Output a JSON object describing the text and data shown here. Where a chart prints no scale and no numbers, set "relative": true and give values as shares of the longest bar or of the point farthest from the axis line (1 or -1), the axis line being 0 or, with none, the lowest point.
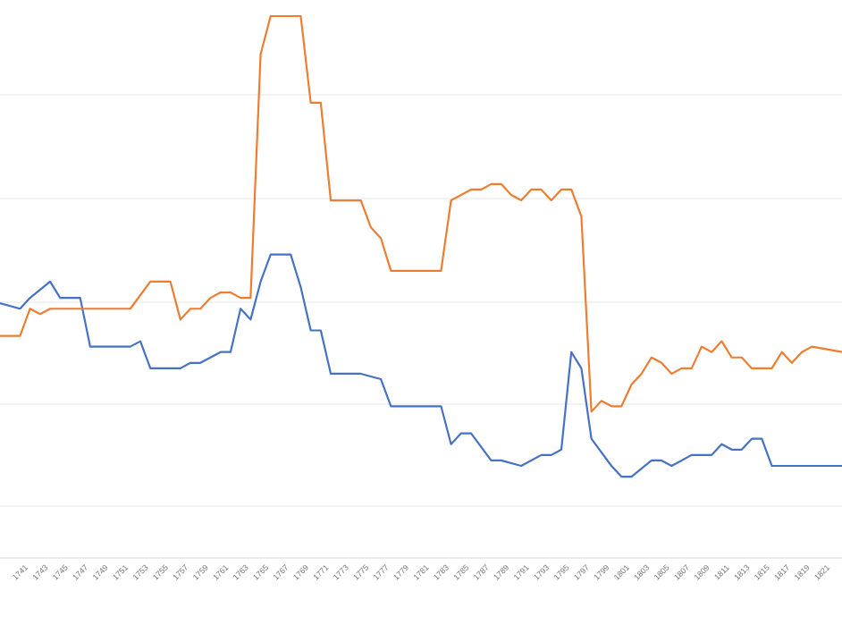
{
  "chart_data": {
    "type": "line",
    "relative": true,
    "grid": "y",
    "marker": "none",
    "line_style": "solid",
    "xlim": [
      1739,
      1823
    ],
    "xticks": [
      1741,
      1743,
      1745,
      1747,
      1749,
      1751,
      1753,
      1755,
      1757,
      1759,
      1761,
      1763,
      1765,
      1767,
      1769,
      1771,
      1773,
      1775,
      1777,
      1779,
      1781,
      1783,
      1785,
      1787,
      1789,
      1791,
      1793,
      1795,
      1797,
      1799,
      1801,
      1803,
      1805,
      1807,
      1809,
      1811,
      1813,
      1815,
      1817,
      1819,
      1821
    ],
    "series": [
      {
        "color": "#4472c4",
        "x": [
          1739,
          1741,
          1742,
          1744,
          1745,
          1746,
          1747,
          1748,
          1752,
          1753,
          1754,
          1756,
          1757,
          1758,
          1759,
          1760,
          1761,
          1762,
          1763,
          1764,
          1765,
          1766,
          1768,
          1769,
          1770,
          1771,
          1772,
          1775,
          1777,
          1778,
          1783,
          1784,
          1785,
          1786,
          1788,
          1789,
          1791,
          1793,
          1794,
          1795,
          1796,
          1797,
          1798,
          1800,
          1801,
          1802,
          1804,
          1805,
          1806,
          1808,
          1809,
          1810,
          1811,
          1812,
          1813,
          1814,
          1815,
          1816,
          1817,
          1818,
          1819,
          1823
        ],
        "values": [
          0.47,
          0.46,
          0.48,
          0.51,
          0.48,
          0.48,
          0.48,
          0.39,
          0.39,
          0.4,
          0.35,
          0.35,
          0.35,
          0.36,
          0.36,
          0.37,
          0.38,
          0.38,
          0.46,
          0.44,
          0.51,
          0.56,
          0.56,
          0.5,
          0.42,
          0.42,
          0.34,
          0.34,
          0.33,
          0.28,
          0.28,
          0.21,
          0.23,
          0.23,
          0.18,
          0.18,
          0.17,
          0.19,
          0.19,
          0.2,
          0.38,
          0.35,
          0.22,
          0.17,
          0.15,
          0.15,
          0.18,
          0.18,
          0.17,
          0.19,
          0.19,
          0.19,
          0.21,
          0.2,
          0.2,
          0.22,
          0.22,
          0.17,
          0.17,
          0.17,
          0.17,
          0.17
        ]
      },
      {
        "color": "#ed7d31",
        "x": [
          1739,
          1741,
          1742,
          1743,
          1744,
          1745,
          1746,
          1752,
          1754,
          1756,
          1757,
          1758,
          1759,
          1760,
          1761,
          1762,
          1763,
          1764,
          1765,
          1766,
          1769,
          1770,
          1771,
          1772,
          1775,
          1776,
          1777,
          1778,
          1783,
          1784,
          1786,
          1787,
          1788,
          1789,
          1790,
          1791,
          1792,
          1793,
          1794,
          1795,
          1796,
          1797,
          1798,
          1799,
          1800,
          1801,
          1802,
          1803,
          1804,
          1805,
          1806,
          1807,
          1808,
          1809,
          1810,
          1811,
          1812,
          1813,
          1814,
          1815,
          1816,
          1817,
          1818,
          1819,
          1820,
          1823
        ],
        "values": [
          0.41,
          0.41,
          0.46,
          0.45,
          0.46,
          0.46,
          0.46,
          0.46,
          0.51,
          0.51,
          0.44,
          0.46,
          0.46,
          0.48,
          0.49,
          0.49,
          0.48,
          0.48,
          0.93,
          1,
          1,
          0.84,
          0.84,
          0.66,
          0.66,
          0.61,
          0.59,
          0.53,
          0.53,
          0.66,
          0.68,
          0.68,
          0.69,
          0.69,
          0.67,
          0.66,
          0.68,
          0.68,
          0.66,
          0.68,
          0.68,
          0.63,
          0.27,
          0.29,
          0.28,
          0.28,
          0.32,
          0.34,
          0.37,
          0.36,
          0.34,
          0.35,
          0.35,
          0.39,
          0.38,
          0.4,
          0.37,
          0.37,
          0.35,
          0.35,
          0.35,
          0.38,
          0.36,
          0.38,
          0.39,
          0.38
        ]
      }
    ]
  }
}
